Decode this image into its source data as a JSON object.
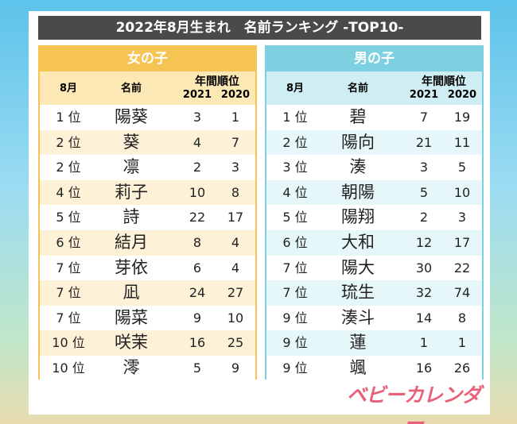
{
  "title": "2022年8月生まれ　名前ランキング -TOP10-",
  "tables": [
    {
      "label": "女の子",
      "columns": [
        "8月",
        "名前",
        "年間順位",
        "2021",
        "2020"
      ],
      "rows": [
        [
          "1 位",
          "陽葵",
          3,
          1
        ],
        [
          "2 位",
          "葵",
          4,
          7
        ],
        [
          "2 位",
          "凛",
          2,
          3
        ],
        [
          "4 位",
          "莉子",
          10,
          8
        ],
        [
          "5 位",
          "詩",
          22,
          17
        ],
        [
          "6 位",
          "結月",
          8,
          4
        ],
        [
          "7 位",
          "芽依",
          6,
          4
        ],
        [
          "7 位",
          "凪",
          24,
          27
        ],
        [
          "7 位",
          "陽菜",
          9,
          10
        ],
        [
          "10 位",
          "咲茉",
          16,
          25
        ],
        [
          "10 位",
          "澪",
          5,
          9
        ]
      ]
    },
    {
      "label": "男の子",
      "columns": [
        "8月",
        "名前",
        "年間順位",
        "2021",
        "2020"
      ],
      "rows": [
        [
          "1 位",
          "碧",
          7,
          19
        ],
        [
          "2 位",
          "陽向",
          21,
          11
        ],
        [
          "3 位",
          "湊",
          3,
          5
        ],
        [
          "4 位",
          "朝陽",
          5,
          10
        ],
        [
          "5 位",
          "陽翔",
          2,
          3
        ],
        [
          "6 位",
          "大和",
          12,
          17
        ],
        [
          "7 位",
          "陽大",
          30,
          22
        ],
        [
          "7 位",
          "琉生",
          32,
          74
        ],
        [
          "9 位",
          "湊斗",
          14,
          8
        ],
        [
          "9 位",
          "蓮",
          1,
          1
        ],
        [
          "9 位",
          "颯",
          16,
          26
        ]
      ]
    }
  ],
  "logo": "ベビーカレンダー"
}
